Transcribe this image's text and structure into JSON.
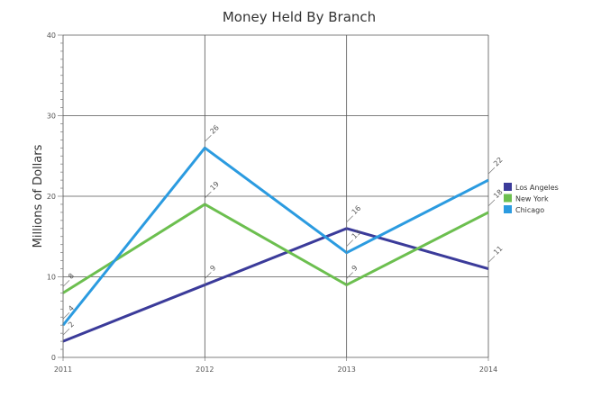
{
  "chart_data": {
    "type": "line",
    "title": "Money Held By Branch",
    "xlabel": "",
    "ylabel": "Millions of Dollars",
    "x": [
      "2011",
      "2012",
      "2013",
      "2014"
    ],
    "ylim": [
      0,
      40
    ],
    "yticks": [
      0,
      10,
      20,
      30,
      40
    ],
    "grid": true,
    "legend_position": "right",
    "series": [
      {
        "name": "Los Angeles",
        "color": "#3b3b9a",
        "values": [
          2,
          9,
          16,
          11
        ]
      },
      {
        "name": "New York",
        "color": "#6cbf4f",
        "values": [
          8,
          19,
          9,
          18
        ]
      },
      {
        "name": "Chicago",
        "color": "#2b9be0",
        "values": [
          4,
          26,
          13,
          22
        ]
      }
    ]
  }
}
